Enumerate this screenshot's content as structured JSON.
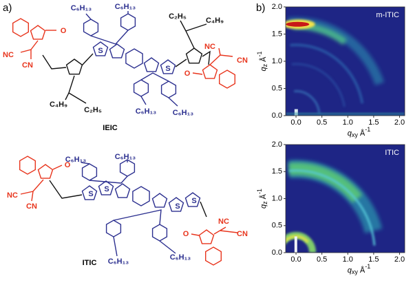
{
  "panel_a": {
    "label": "a)",
    "molecules": [
      {
        "name": "IEIC",
        "labels": [
          "C₆H₁₃",
          "C₆H₁₃",
          "C₆H₁₃",
          "C₆H₁₃",
          "C₄H₉",
          "C₂H₅",
          "C₂H₅",
          "C₄H₉",
          "O",
          "NC",
          "CN",
          "O",
          "NC",
          "CN",
          "S",
          "S"
        ]
      },
      {
        "name": "ITIC",
        "labels": [
          "C₆H₁₃",
          "C₆H₁₃",
          "C₆H₁₃",
          "C₆H₁₃",
          "O",
          "NC",
          "CN",
          "O",
          "NC",
          "CN",
          "S",
          "S",
          "S",
          "S"
        ]
      }
    ]
  },
  "panel_b": {
    "label": "b)",
    "plots": [
      {
        "title": "m-ITIC",
        "xlim": [
          -0.2,
          2.1
        ],
        "ylim": [
          0,
          2
        ],
        "xlabel": {
          "symbol": "q",
          "subscript": "xy",
          "unit": "Å",
          "exponent": "-1"
        },
        "ylabel": {
          "symbol": "q",
          "subscript": "z",
          "unit": "Å",
          "exponent": "-1"
        },
        "xticks": [
          {
            "value": 0,
            "label": "0.0"
          },
          {
            "value": 0.5,
            "label": "0.5"
          },
          {
            "value": 1,
            "label": "1.0"
          },
          {
            "value": 1.5,
            "label": "1.5"
          },
          {
            "value": 2,
            "label": "2.0"
          }
        ],
        "yticks": [
          {
            "value": 0,
            "label": "0.0"
          },
          {
            "value": 0.5,
            "label": "0.5"
          },
          {
            "value": 1,
            "label": "1.0"
          },
          {
            "value": 1.5,
            "label": "1.5"
          },
          {
            "value": 2,
            "label": "2.0"
          }
        ]
      },
      {
        "title": "ITIC",
        "xlim": [
          -0.2,
          2.1
        ],
        "ylim": [
          0,
          2
        ],
        "xlabel": {
          "symbol": "q",
          "subscript": "xy",
          "unit": "Å",
          "exponent": "-1"
        },
        "ylabel": {
          "symbol": "q",
          "subscript": "z",
          "unit": "Å",
          "exponent": "-1"
        },
        "xticks": [
          {
            "value": 0,
            "label": "0.0"
          },
          {
            "value": 0.5,
            "label": "0.5"
          },
          {
            "value": 1,
            "label": "1.0"
          },
          {
            "value": 1.5,
            "label": "1.5"
          },
          {
            "value": 2,
            "label": "2.0"
          }
        ],
        "yticks": [
          {
            "value": 0,
            "label": "0.0"
          },
          {
            "value": 0.5,
            "label": "0.5"
          },
          {
            "value": 1,
            "label": "1.0"
          },
          {
            "value": 1.5,
            "label": "1.5"
          },
          {
            "value": 2,
            "label": "2.0"
          }
        ]
      }
    ]
  }
}
